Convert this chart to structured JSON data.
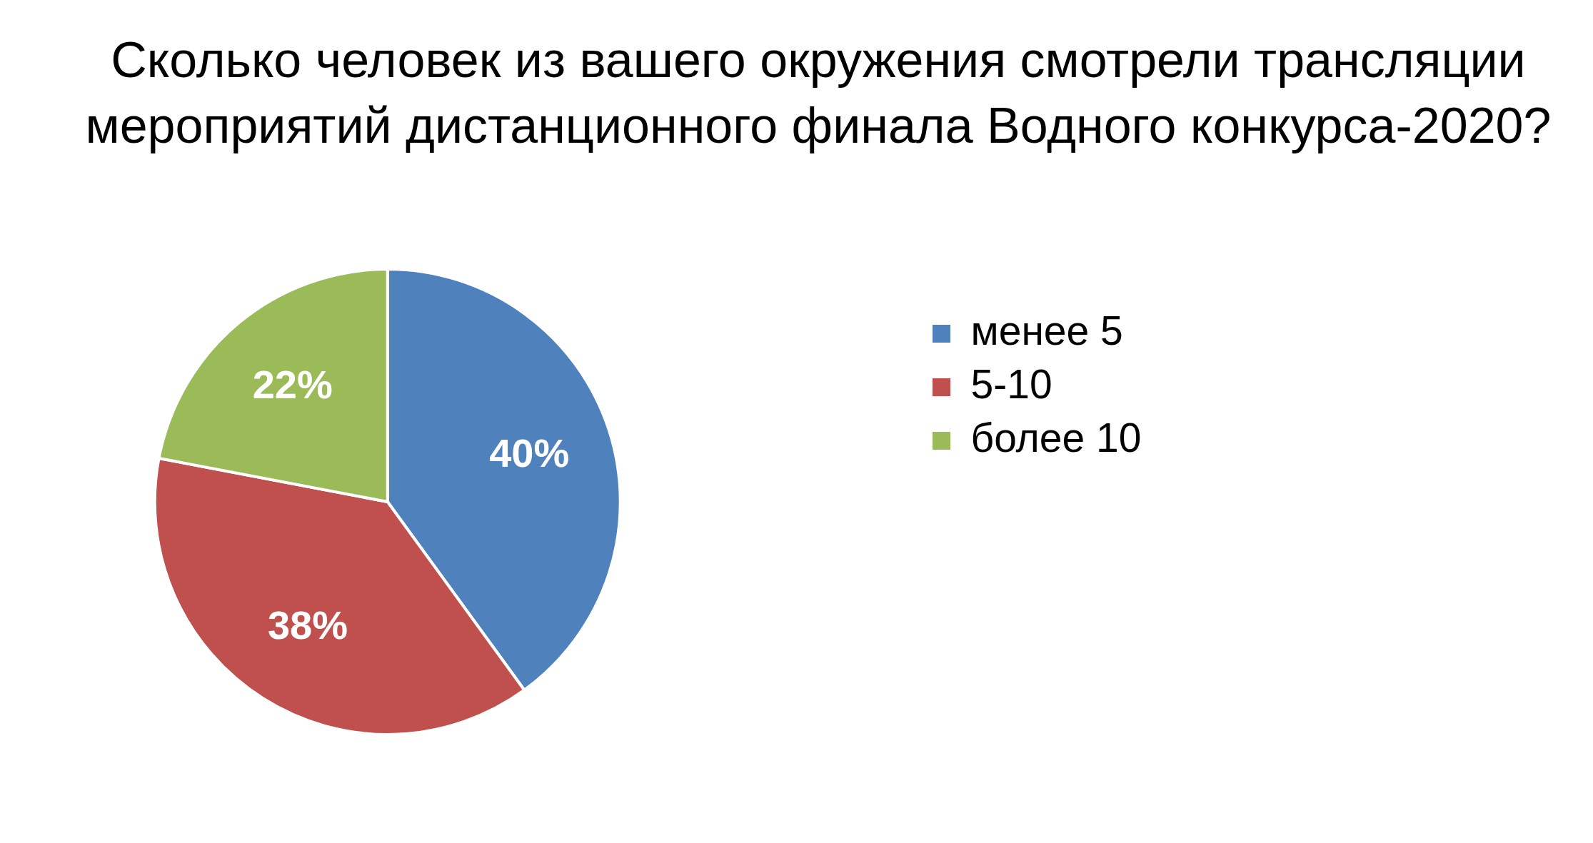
{
  "chart_data": {
    "type": "pie",
    "title": "Сколько человек из вашего окружения смотрели трансляции мероприятий дистанционного финала Водного конкурса-2020?",
    "categories": [
      "менее 5",
      "5-10",
      "более 10"
    ],
    "values": [
      40,
      38,
      22
    ],
    "colors": [
      "#4f81bd",
      "#c0504d",
      "#9bbb59"
    ],
    "value_labels": [
      "40%",
      "38%",
      "22%"
    ],
    "legend": "right"
  }
}
